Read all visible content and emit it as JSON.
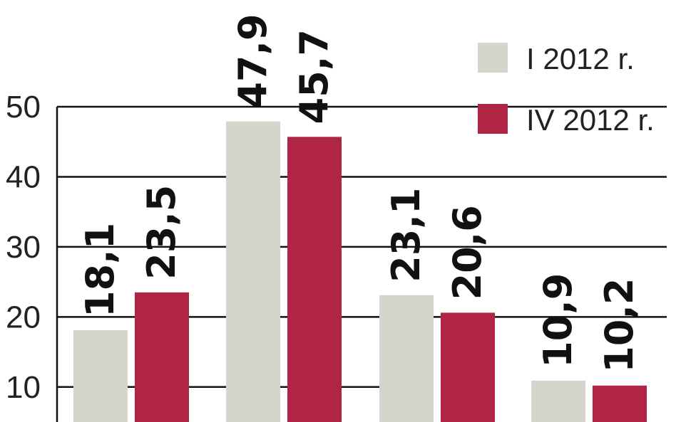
{
  "chart_data": {
    "type": "bar",
    "categories": [
      "",
      "",
      "",
      ""
    ],
    "series": [
      {
        "name": "I 2012 r.",
        "color": "#d5d5cc",
        "values": [
          18.1,
          47.9,
          23.1,
          10.9
        ],
        "labels": [
          "18,1",
          "47,9",
          "23,1",
          "10,9"
        ]
      },
      {
        "name": "IV 2012 r.",
        "color": "#b02444",
        "values": [
          23.5,
          45.7,
          20.6,
          10.2
        ],
        "labels": [
          "23,5",
          "45,7",
          "20,6",
          "10,2"
        ]
      }
    ],
    "title": "",
    "xlabel": "",
    "ylabel": "",
    "ylim": [
      5,
      50
    ],
    "yticks": [
      10,
      20,
      30,
      40,
      50
    ],
    "grid": true,
    "legend_position": "top-right"
  }
}
